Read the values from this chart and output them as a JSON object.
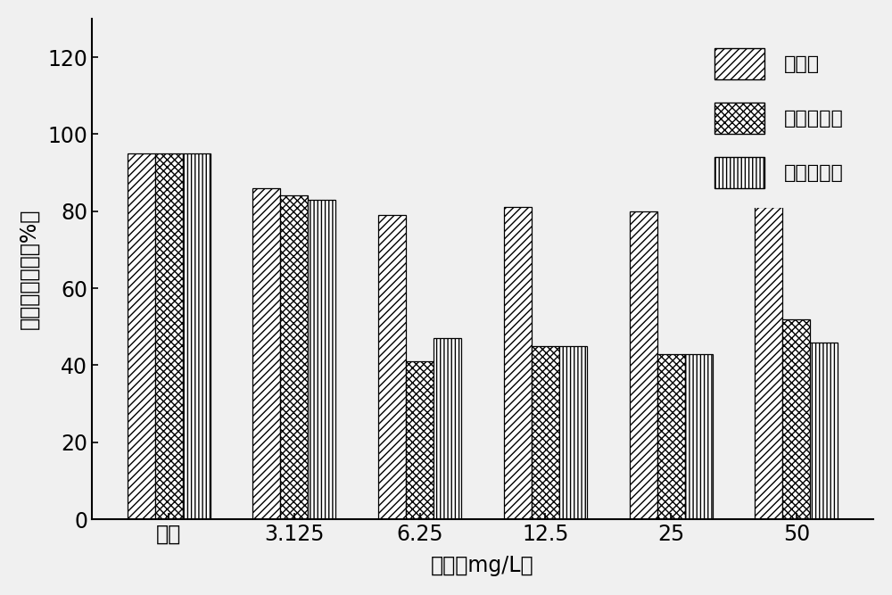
{
  "categories": [
    "对照",
    "3.125",
    "6.25",
    "12.5",
    "25",
    "50"
  ],
  "series": {
    "纳米金": [
      95,
      86,
      79,
      81,
      80,
      81
    ],
    "商购纳米銀": [
      95,
      84,
      41,
      45,
      43,
      52
    ],
    "商购硒酸銀": [
      95,
      83,
      47,
      45,
      43,
      46
    ]
  },
  "ylabel": "细胞相对活力（%）",
  "xlabel": "浓度（mg/L）",
  "ylim": [
    0,
    130
  ],
  "yticks": [
    0,
    20,
    40,
    60,
    80,
    100,
    120
  ],
  "background_color": "#f0f0f0",
  "bar_edge_color": "#000000",
  "bar_width": 0.22,
  "legend_labels": [
    "纳米金",
    "商购纳米銀",
    "商购硒酸銀"
  ],
  "hatch_patterns": [
    "////",
    "xxxx",
    "||||"
  ],
  "bar_facecolor": "#ffffff"
}
